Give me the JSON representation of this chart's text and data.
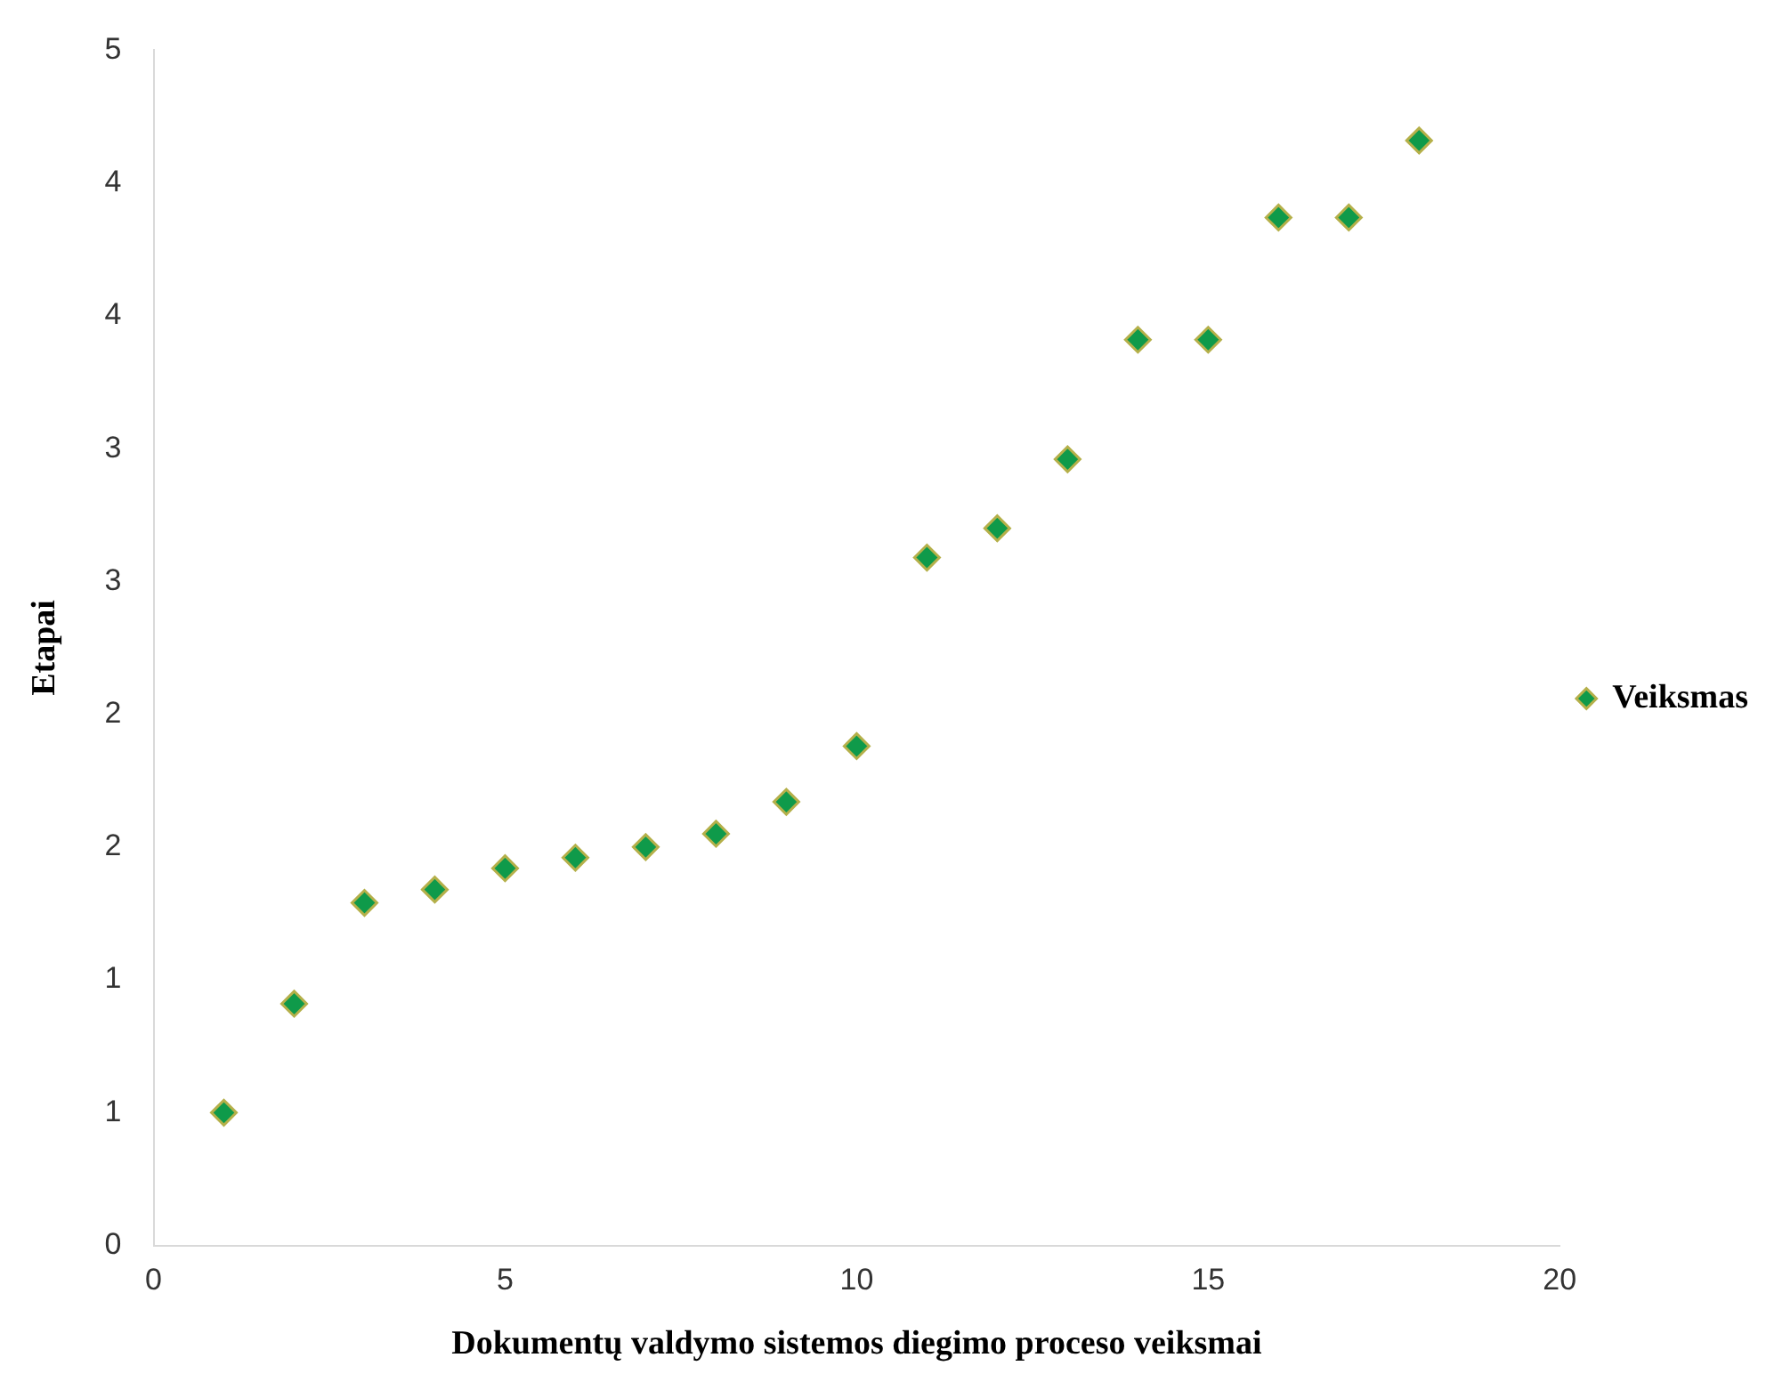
{
  "chart_data": {
    "type": "scatter",
    "xlabel": "Dokumentų valdymo sistemos diegimo proceso veiksmai",
    "ylabel": "Etapai",
    "series": [
      {
        "name": "Veiksmas",
        "color": "#0f9a4a",
        "x": [
          1,
          2,
          3,
          4,
          5,
          6,
          7,
          8,
          9,
          10,
          11,
          12,
          13,
          14,
          15,
          16,
          17,
          18
        ],
        "values": [
          0.5,
          0.91,
          1.29,
          1.34,
          1.42,
          1.46,
          1.5,
          1.55,
          1.67,
          1.88,
          2.59,
          2.7,
          2.96,
          3.41,
          3.41,
          3.87,
          3.87,
          4.16
        ]
      }
    ],
    "xlim": [
      0,
      20
    ],
    "xticks": [
      0,
      5,
      10,
      15,
      20
    ],
    "ylim": [
      0,
      4.5
    ],
    "yticks": [
      0,
      {
        "value": 0.5,
        "label": "1"
      },
      1,
      {
        "value": 1.5,
        "label": "2"
      },
      2,
      {
        "value": 2.5,
        "label": "3"
      },
      3,
      {
        "value": 3.5,
        "label": "4"
      },
      4,
      {
        "value": 4.5,
        "label": "5"
      }
    ],
    "grid": false,
    "legend": "right",
    "marker": "diamond"
  }
}
